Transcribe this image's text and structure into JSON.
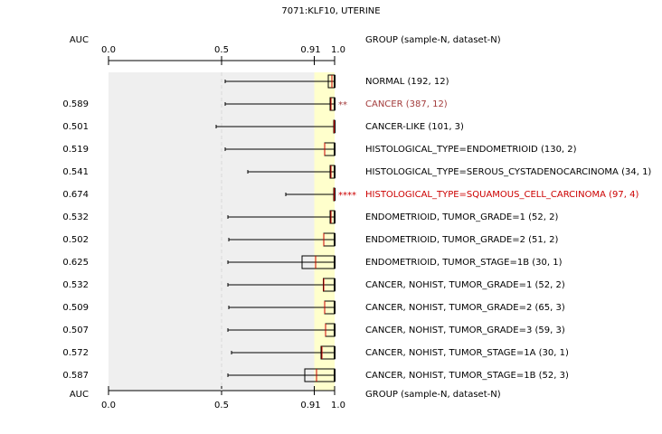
{
  "chart_data": {
    "type": "box",
    "title": "7071:KLF10, UTERINE",
    "value_header": "AUC",
    "group_header": "GROUP (sample-N, dataset-N)",
    "xlim": [
      0,
      1
    ],
    "xticks": [
      {
        "value": 0,
        "label": "0.0"
      },
      0.5,
      0.91,
      {
        "value": 1,
        "label": "1.0"
      }
    ],
    "median_color": "#cc0000",
    "box_color": "#000000",
    "rows": [
      {
        "label": "NORMAL (192, 12)",
        "auc": null,
        "min": 0.516,
        "q1": 0.972,
        "median": 0.988,
        "q3": 1.0,
        "max": 1.0
      },
      {
        "label": "CANCER (387, 12)",
        "auc": 0.589,
        "stars": "**",
        "color": "#a33c3c",
        "min": 0.516,
        "q1": 0.98,
        "median": 0.984,
        "q3": 1.0,
        "max": 1.0
      },
      {
        "label": "CANCER-LIKE (101, 3)",
        "auc": 0.501,
        "min": 0.476,
        "q1": 0.996,
        "median": 0.998,
        "q3": 1.0,
        "max": 1.0
      },
      {
        "label": "HISTOLOGICAL_TYPE=ENDOMETRIOID (130, 2)",
        "auc": 0.519,
        "min": 0.516,
        "q1": 0.956,
        "median": 0.956,
        "q3": 1.0,
        "max": 1.0
      },
      {
        "label": "HISTOLOGICAL_TYPE=SEROUS_CYSTADENOCARCINOMA (34, 1)",
        "auc": 0.541,
        "min": 0.616,
        "q1": 0.98,
        "median": 0.984,
        "q3": 1.0,
        "max": 1.0
      },
      {
        "label": "HISTOLOGICAL_TYPE=SQUAMOUS_CELL_CARCINOMA (97, 4)",
        "auc": 0.674,
        "stars": "****",
        "color": "#cc0000",
        "min": 0.784,
        "q1": 0.996,
        "median": 0.998,
        "q3": 1.0,
        "max": 1.0
      },
      {
        "label": "ENDOMETRIOID, TUMOR_GRADE=1 (52, 2)",
        "auc": 0.532,
        "min": 0.528,
        "q1": 0.98,
        "median": 0.984,
        "q3": 1.0,
        "max": 1.0
      },
      {
        "label": "ENDOMETRIOID, TUMOR_GRADE=2 (51, 2)",
        "auc": 0.502,
        "min": 0.532,
        "q1": 0.952,
        "median": 0.952,
        "q3": 1.0,
        "max": 1.0
      },
      {
        "label": "ENDOMETRIOID, TUMOR_STAGE=1B (30, 1)",
        "auc": 0.625,
        "min": 0.528,
        "q1": 0.856,
        "median": 0.916,
        "q3": 1.0,
        "max": 1.0
      },
      {
        "label": "CANCER, NOHIST, TUMOR_GRADE=1 (52, 2)",
        "auc": 0.532,
        "min": 0.528,
        "q1": 0.95,
        "median": 0.952,
        "q3": 1.0,
        "max": 1.0
      },
      {
        "label": "CANCER, NOHIST, TUMOR_GRADE=2 (65, 3)",
        "auc": 0.509,
        "min": 0.532,
        "q1": 0.956,
        "median": 0.956,
        "q3": 1.0,
        "max": 1.0
      },
      {
        "label": "CANCER, NOHIST, TUMOR_GRADE=3 (59, 3)",
        "auc": 0.507,
        "min": 0.528,
        "q1": 0.96,
        "median": 0.96,
        "q3": 1.0,
        "max": 1.0
      },
      {
        "label": "CANCER, NOHIST, TUMOR_STAGE=1A (30, 1)",
        "auc": 0.572,
        "min": 0.544,
        "q1": 0.94,
        "median": 0.944,
        "q3": 1.0,
        "max": 1.0
      },
      {
        "label": "CANCER, NOHIST, TUMOR_STAGE=1B (52, 3)",
        "auc": 0.587,
        "min": 0.528,
        "q1": 0.868,
        "median": 0.92,
        "q3": 1.0,
        "max": 1.0
      }
    ]
  }
}
